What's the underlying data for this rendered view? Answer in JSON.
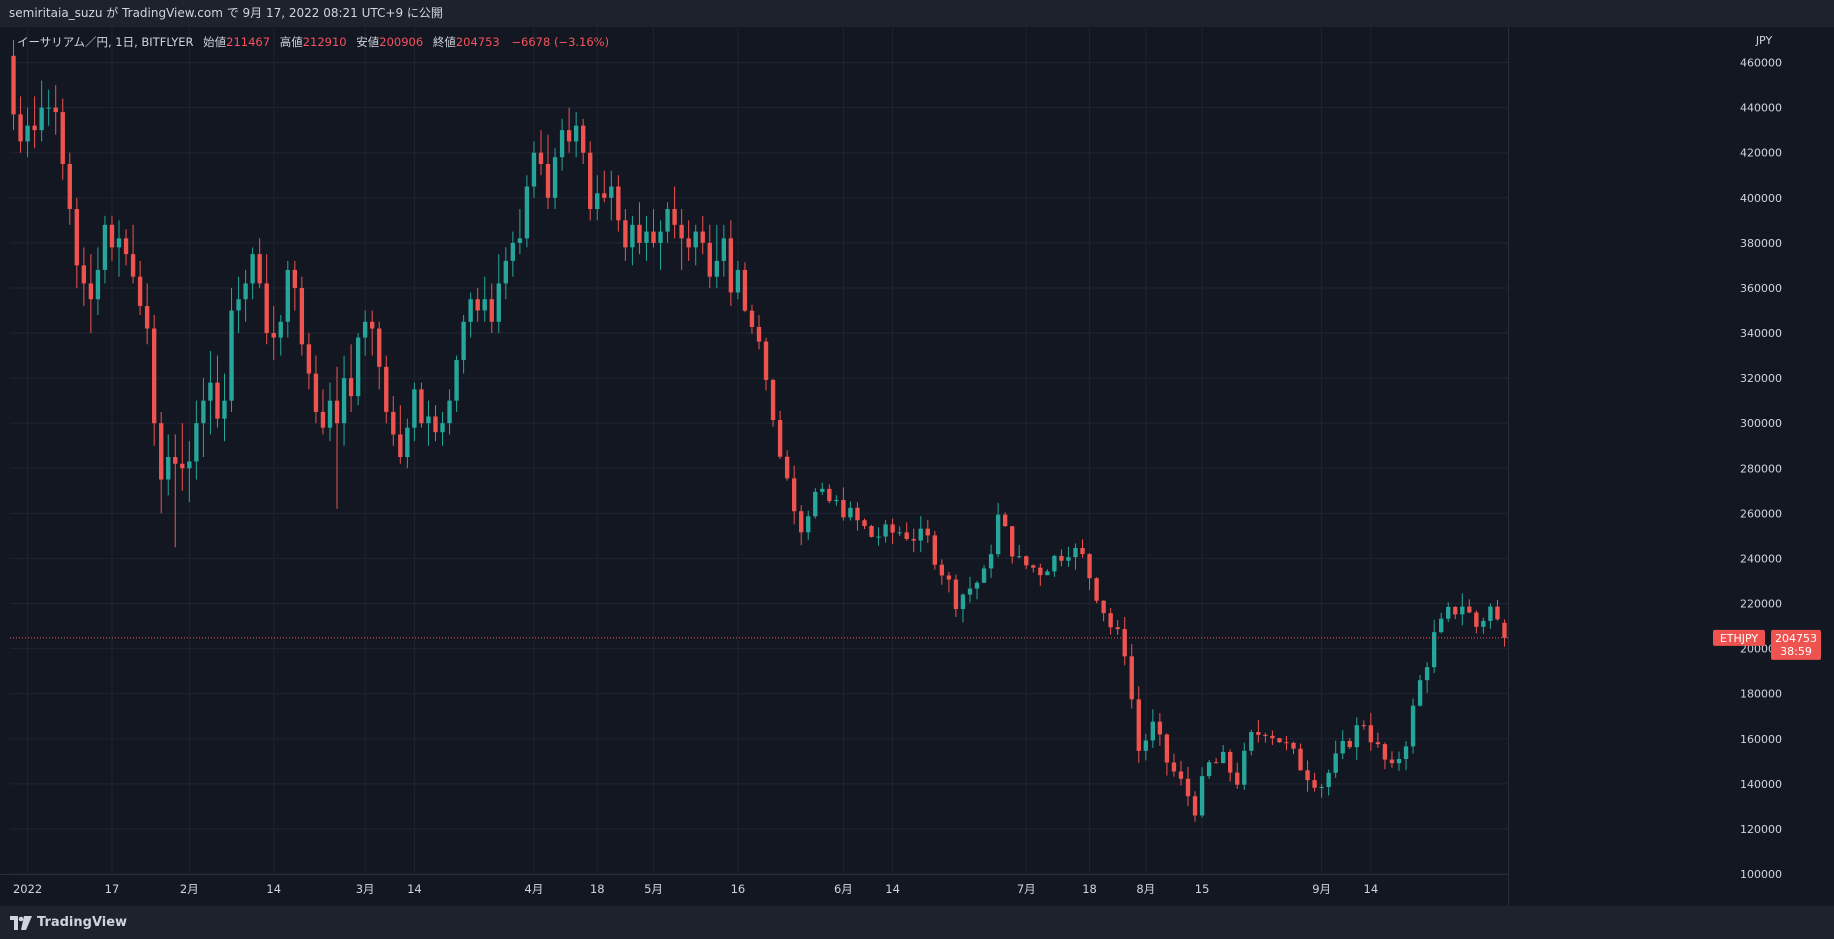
{
  "header": {
    "publish_line": "semiritaia_suzu が TradingView.com で 9月 17, 2022 08:21 UTC+9 に公開"
  },
  "legend": {
    "symbol_line": "イーサリアム／円, 1日, BITFLYER",
    "open_label": "始値",
    "open": "211467",
    "high_label": "高値",
    "high": "212910",
    "low_label": "安値",
    "low": "200906",
    "close_label": "終値",
    "close": "204753",
    "change": "−6678 (−3.16%)"
  },
  "footer": {
    "brand": "TradingView"
  },
  "colors": {
    "background": "#131722",
    "panel": "#1e222d",
    "up": "#26a69a",
    "down": "#ef5350",
    "grid": "#1f2430",
    "text": "#d1d4dc"
  },
  "chart_data": {
    "type": "candlestick",
    "symbol": "ETHJPY",
    "interval": "1日",
    "exchange": "BITFLYER",
    "currency_label": "JPY",
    "y_range": [
      100000,
      470000
    ],
    "y_ticks": [
      100000,
      120000,
      140000,
      160000,
      180000,
      200000,
      220000,
      240000,
      260000,
      280000,
      300000,
      320000,
      340000,
      360000,
      380000,
      400000,
      420000,
      440000,
      460000
    ],
    "x_tick_labels": [
      {
        "label": "2022",
        "bar": 2
      },
      {
        "label": "17",
        "bar": 14
      },
      {
        "label": "2月",
        "bar": 25
      },
      {
        "label": "14",
        "bar": 37
      },
      {
        "label": "3月",
        "bar": 50
      },
      {
        "label": "14",
        "bar": 57
      },
      {
        "label": "4月",
        "bar": 74
      },
      {
        "label": "18",
        "bar": 83
      },
      {
        "label": "5月",
        "bar": 91
      },
      {
        "label": "16",
        "bar": 103
      },
      {
        "label": "6月",
        "bar": 118
      },
      {
        "label": "14",
        "bar": 125
      },
      {
        "label": "7月",
        "bar": 144
      },
      {
        "label": "18",
        "bar": 153
      },
      {
        "label": "8月",
        "bar": 161
      },
      {
        "label": "15",
        "bar": 169
      },
      {
        "label": "9月",
        "bar": 186
      },
      {
        "label": "14",
        "bar": 193
      }
    ],
    "last_price": {
      "label": "ETHJPY",
      "value": "204753",
      "countdown": "38:59",
      "price": 204753
    },
    "grid": true,
    "ohlc": [
      [
        463000,
        470000,
        430000,
        437000
      ],
      [
        437000,
        445000,
        420000,
        425000
      ],
      [
        425000,
        440000,
        418000,
        432000
      ],
      [
        432000,
        445000,
        422000,
        430000
      ],
      [
        430000,
        452000,
        425000,
        440000
      ],
      [
        440000,
        448000,
        432000,
        440000
      ],
      [
        440000,
        450000,
        428000,
        438000
      ],
      [
        438000,
        444000,
        408000,
        415000
      ],
      [
        415000,
        420000,
        388000,
        395000
      ],
      [
        395000,
        400000,
        360000,
        370000
      ],
      [
        370000,
        378000,
        352000,
        362000
      ],
      [
        362000,
        375000,
        340000,
        355000
      ],
      [
        355000,
        378000,
        348000,
        368000
      ],
      [
        368000,
        392000,
        362000,
        388000
      ],
      [
        388000,
        392000,
        372000,
        378000
      ],
      [
        378000,
        390000,
        365000,
        382000
      ],
      [
        382000,
        386000,
        370000,
        375000
      ],
      [
        375000,
        388000,
        362000,
        365000
      ],
      [
        365000,
        372000,
        348000,
        352000
      ],
      [
        352000,
        362000,
        335000,
        342000
      ],
      [
        342000,
        348000,
        290000,
        300000
      ],
      [
        300000,
        305000,
        260000,
        275000
      ],
      [
        275000,
        295000,
        268000,
        285000
      ],
      [
        285000,
        295000,
        245000,
        282000
      ],
      [
        282000,
        300000,
        270000,
        280000
      ],
      [
        280000,
        292000,
        265000,
        283000
      ],
      [
        283000,
        310000,
        275000,
        300000
      ],
      [
        300000,
        320000,
        285000,
        310000
      ],
      [
        310000,
        332000,
        295000,
        318000
      ],
      [
        318000,
        330000,
        298000,
        302000
      ],
      [
        302000,
        322000,
        292000,
        310000
      ],
      [
        310000,
        360000,
        305000,
        350000
      ],
      [
        350000,
        365000,
        340000,
        355000
      ],
      [
        355000,
        368000,
        345000,
        362000
      ],
      [
        362000,
        378000,
        355000,
        375000
      ],
      [
        375000,
        382000,
        360000,
        362000
      ],
      [
        362000,
        375000,
        335000,
        340000
      ],
      [
        340000,
        352000,
        328000,
        338000
      ],
      [
        338000,
        348000,
        330000,
        345000
      ],
      [
        345000,
        372000,
        338000,
        368000
      ],
      [
        368000,
        372000,
        350000,
        360000
      ],
      [
        360000,
        365000,
        330000,
        335000
      ],
      [
        335000,
        340000,
        315000,
        322000
      ],
      [
        322000,
        330000,
        300000,
        305000
      ],
      [
        305000,
        315000,
        295000,
        298000
      ],
      [
        298000,
        318000,
        292000,
        310000
      ],
      [
        310000,
        325000,
        262000,
        300000
      ],
      [
        300000,
        330000,
        290000,
        320000
      ],
      [
        320000,
        335000,
        305000,
        312000
      ],
      [
        312000,
        340000,
        308000,
        338000
      ],
      [
        338000,
        350000,
        330000,
        345000
      ],
      [
        345000,
        350000,
        330000,
        342000
      ],
      [
        342000,
        345000,
        315000,
        325000
      ],
      [
        325000,
        330000,
        300000,
        305000
      ],
      [
        305000,
        312000,
        290000,
        295000
      ],
      [
        295000,
        308000,
        282000,
        285000
      ],
      [
        285000,
        302000,
        280000,
        298000
      ],
      [
        298000,
        318000,
        292000,
        315000
      ],
      [
        315000,
        318000,
        298000,
        300000
      ],
      [
        300000,
        310000,
        290000,
        303000
      ],
      [
        303000,
        308000,
        292000,
        296000
      ],
      [
        296000,
        305000,
        290000,
        300000
      ],
      [
        300000,
        315000,
        295000,
        310000
      ],
      [
        310000,
        330000,
        305000,
        328000
      ],
      [
        328000,
        348000,
        322000,
        345000
      ],
      [
        345000,
        358000,
        338000,
        355000
      ],
      [
        355000,
        360000,
        345000,
        350000
      ],
      [
        350000,
        365000,
        345000,
        355000
      ],
      [
        355000,
        362000,
        340000,
        345000
      ],
      [
        345000,
        375000,
        340000,
        362000
      ],
      [
        362000,
        378000,
        355000,
        372000
      ],
      [
        372000,
        385000,
        365000,
        380000
      ],
      [
        380000,
        395000,
        375000,
        382000
      ],
      [
        382000,
        410000,
        378000,
        405000
      ],
      [
        405000,
        425000,
        400000,
        420000
      ],
      [
        420000,
        430000,
        410000,
        415000
      ],
      [
        415000,
        428000,
        395000,
        400000
      ],
      [
        400000,
        422000,
        395000,
        418000
      ],
      [
        418000,
        435000,
        412000,
        430000
      ],
      [
        430000,
        440000,
        420000,
        425000
      ],
      [
        425000,
        438000,
        418000,
        432000
      ],
      [
        432000,
        435000,
        415000,
        420000
      ],
      [
        420000,
        425000,
        390000,
        395000
      ],
      [
        395000,
        410000,
        390000,
        402000
      ],
      [
        402000,
        412000,
        398000,
        400000
      ],
      [
        400000,
        412000,
        390000,
        405000
      ],
      [
        405000,
        410000,
        385000,
        390000
      ],
      [
        390000,
        395000,
        372000,
        378000
      ],
      [
        378000,
        392000,
        370000,
        388000
      ],
      [
        388000,
        398000,
        375000,
        380000
      ],
      [
        380000,
        392000,
        372000,
        385000
      ],
      [
        385000,
        395000,
        378000,
        380000
      ],
      [
        380000,
        390000,
        368000,
        385000
      ],
      [
        385000,
        398000,
        380000,
        395000
      ],
      [
        395000,
        405000,
        382000,
        388000
      ],
      [
        388000,
        395000,
        368000,
        382000
      ],
      [
        382000,
        390000,
        372000,
        378000
      ],
      [
        378000,
        388000,
        370000,
        385000
      ],
      [
        385000,
        392000,
        375000,
        380000
      ],
      [
        380000,
        388000,
        360000,
        365000
      ],
      [
        365000,
        388000,
        360000,
        372000
      ],
      [
        372000,
        388000,
        365000,
        382000
      ],
      [
        382000,
        390000,
        352000,
        358000
      ],
      [
        358000,
        372000,
        355000,
        368000
      ]
    ]
  }
}
